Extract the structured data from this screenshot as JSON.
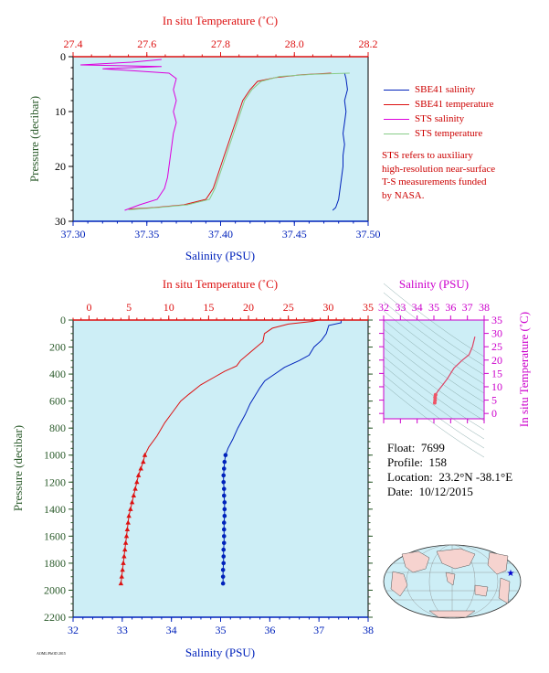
{
  "colors": {
    "panel_bg": "#cdeef6",
    "salinity": "#0022bb",
    "temperature": "#dd1111",
    "sts_salinity": "#dd00dd",
    "sts_temperature": "#88cc88",
    "pressure_axis": "#2a5a2a",
    "magenta_axis": "#cc00cc"
  },
  "legend": {
    "items": [
      {
        "label": "SBE41 salinity",
        "color": "#0022bb"
      },
      {
        "label": "SBE41 temperature",
        "color": "#dd1111"
      },
      {
        "label": "STS salinity",
        "color": "#dd00dd"
      },
      {
        "label": "STS temperature",
        "color": "#88cc88"
      }
    ]
  },
  "note": {
    "lines": [
      "STS refers to auxiliary",
      "high-resolution near-surface",
      "T-S measurements funded",
      "by NASA."
    ]
  },
  "info": {
    "float_label": "Float:",
    "float_value": "7699",
    "profile_label": "Profile:",
    "profile_value": "158",
    "location_label": "Location:",
    "location_value": "23.2°N  -38.1°E",
    "date_label": "Date:",
    "date_value": "10/12/2015"
  },
  "footer_code": "AOML/PhOD 2015",
  "chart_data": [
    {
      "type": "line",
      "title": "",
      "top_axis_label": "In situ Temperature (˚C)",
      "bottom_axis_label": "Salinity (PSU)",
      "ylabel": "Pressure (decibar)",
      "temp_range": [
        27.4,
        28.2
      ],
      "temp_ticks": [
        "27.4",
        "27.6",
        "27.8",
        "28.0",
        "28.2"
      ],
      "salinity_range": [
        37.3,
        37.5
      ],
      "salinity_ticks": [
        "37.30",
        "37.35",
        "37.40",
        "37.45",
        "37.50"
      ],
      "pressure_range": [
        0,
        30
      ],
      "pressure_ticks": [
        "0",
        "10",
        "20",
        "30"
      ],
      "series": [
        {
          "name": "SBE41 salinity",
          "axis": "salinity",
          "points": [
            [
              37.484,
              3
            ],
            [
              37.485,
              4
            ],
            [
              37.486,
              6
            ],
            [
              37.484,
              8
            ],
            [
              37.485,
              10
            ],
            [
              37.484,
              12
            ],
            [
              37.483,
              14
            ],
            [
              37.484,
              16
            ],
            [
              37.483,
              18
            ],
            [
              37.483,
              20
            ],
            [
              37.482,
              22
            ],
            [
              37.481,
              24
            ],
            [
              37.48,
              26
            ],
            [
              37.478,
              27.5
            ],
            [
              37.476,
              28
            ]
          ]
        },
        {
          "name": "SBE41 temperature",
          "axis": "temperature",
          "points": [
            [
              28.1,
              3
            ],
            [
              28.02,
              3.3
            ],
            [
              27.95,
              3.8
            ],
            [
              27.9,
              4.5
            ],
            [
              27.88,
              6
            ],
            [
              27.86,
              8
            ],
            [
              27.85,
              10
            ],
            [
              27.84,
              12
            ],
            [
              27.83,
              14
            ],
            [
              27.82,
              16
            ],
            [
              27.81,
              18
            ],
            [
              27.8,
              20
            ],
            [
              27.79,
              22
            ],
            [
              27.78,
              24
            ],
            [
              27.76,
              26
            ],
            [
              27.7,
              27
            ],
            [
              27.62,
              27.5
            ],
            [
              27.55,
              27.8
            ]
          ]
        },
        {
          "name": "STS salinity",
          "axis": "salinity",
          "points": [
            [
              37.36,
              0.5
            ],
            [
              37.34,
              1
            ],
            [
              37.305,
              1.5
            ],
            [
              37.36,
              1.8
            ],
            [
              37.32,
              2.2
            ],
            [
              37.365,
              3
            ],
            [
              37.37,
              4
            ],
            [
              37.368,
              6
            ],
            [
              37.37,
              8
            ],
            [
              37.368,
              10
            ],
            [
              37.37,
              12
            ],
            [
              37.368,
              14
            ],
            [
              37.367,
              16
            ],
            [
              37.366,
              18
            ],
            [
              37.365,
              20
            ],
            [
              37.364,
              22
            ],
            [
              37.362,
              24
            ],
            [
              37.357,
              26
            ],
            [
              37.345,
              27
            ],
            [
              37.335,
              28
            ]
          ]
        },
        {
          "name": "STS temperature",
          "axis": "temperature",
          "points": [
            [
              28.15,
              3
            ],
            [
              28.05,
              3.2
            ],
            [
              27.96,
              3.6
            ],
            [
              27.91,
              4.5
            ],
            [
              27.885,
              6
            ],
            [
              27.865,
              8
            ],
            [
              27.855,
              10
            ],
            [
              27.845,
              12
            ],
            [
              27.835,
              14
            ],
            [
              27.825,
              16
            ],
            [
              27.815,
              18
            ],
            [
              27.805,
              20
            ],
            [
              27.795,
              22
            ],
            [
              27.785,
              24
            ],
            [
              27.77,
              26
            ],
            [
              27.71,
              27
            ],
            [
              27.63,
              27.5
            ],
            [
              27.55,
              27.9
            ]
          ]
        }
      ]
    },
    {
      "type": "line",
      "title": "",
      "top_axis_label": "In situ Temperature (˚C)",
      "bottom_axis_label": "Salinity (PSU)",
      "ylabel": "Pressure (decibar)",
      "temp_range": [
        -2,
        35
      ],
      "temp_ticks": [
        "0",
        "5",
        "10",
        "15",
        "20",
        "25",
        "30",
        "35"
      ],
      "salinity_range": [
        32,
        38
      ],
      "salinity_ticks": [
        "32",
        "33",
        "34",
        "35",
        "36",
        "37",
        "38"
      ],
      "pressure_range": [
        0,
        2200
      ],
      "pressure_ticks": [
        "0",
        "200",
        "400",
        "600",
        "800",
        "1000",
        "1200",
        "1400",
        "1600",
        "1800",
        "2000",
        "2200"
      ],
      "series": [
        {
          "name": "Temperature",
          "axis": "temperature",
          "points": [
            [
              28.8,
              0
            ],
            [
              28.0,
              10
            ],
            [
              25.0,
              30
            ],
            [
              23.0,
              60
            ],
            [
              22.0,
              100
            ],
            [
              21.8,
              160
            ],
            [
              21.0,
              200
            ],
            [
              20.0,
              250
            ],
            [
              19.0,
              300
            ],
            [
              18.5,
              340
            ],
            [
              17.0,
              380
            ],
            [
              15.5,
              430
            ],
            [
              14.0,
              480
            ],
            [
              12.5,
              550
            ],
            [
              11.5,
              600
            ],
            [
              10.5,
              680
            ],
            [
              9.5,
              760
            ],
            [
              8.5,
              860
            ],
            [
              7.5,
              940
            ],
            [
              7.0,
              1000
            ],
            [
              6.8,
              1050
            ],
            [
              6.5,
              1100
            ],
            [
              6.2,
              1150
            ],
            [
              6.0,
              1200
            ],
            [
              5.8,
              1250
            ],
            [
              5.6,
              1300
            ],
            [
              5.4,
              1350
            ],
            [
              5.2,
              1400
            ],
            [
              5.0,
              1450
            ],
            [
              4.9,
              1500
            ],
            [
              4.8,
              1550
            ],
            [
              4.7,
              1600
            ],
            [
              4.6,
              1650
            ],
            [
              4.5,
              1700
            ],
            [
              4.4,
              1750
            ],
            [
              4.3,
              1800
            ],
            [
              4.2,
              1850
            ],
            [
              4.1,
              1900
            ],
            [
              4.0,
              1950
            ]
          ],
          "markers_from_pressure": 1000
        },
        {
          "name": "Salinity",
          "axis": "salinity",
          "points": [
            [
              37.45,
              0
            ],
            [
              37.45,
              20
            ],
            [
              37.2,
              40
            ],
            [
              37.15,
              100
            ],
            [
              37.05,
              150
            ],
            [
              36.9,
              200
            ],
            [
              36.8,
              260
            ],
            [
              36.6,
              300
            ],
            [
              36.3,
              350
            ],
            [
              36.1,
              400
            ],
            [
              35.9,
              450
            ],
            [
              35.8,
              500
            ],
            [
              35.7,
              560
            ],
            [
              35.6,
              620
            ],
            [
              35.5,
              700
            ],
            [
              35.35,
              800
            ],
            [
              35.25,
              880
            ],
            [
              35.15,
              950
            ],
            [
              35.1,
              1000
            ],
            [
              35.08,
              1050
            ],
            [
              35.07,
              1100
            ],
            [
              35.06,
              1150
            ],
            [
              35.06,
              1200
            ],
            [
              35.07,
              1250
            ],
            [
              35.07,
              1300
            ],
            [
              35.08,
              1350
            ],
            [
              35.08,
              1400
            ],
            [
              35.08,
              1450
            ],
            [
              35.07,
              1500
            ],
            [
              35.07,
              1550
            ],
            [
              35.07,
              1600
            ],
            [
              35.07,
              1650
            ],
            [
              35.06,
              1700
            ],
            [
              35.06,
              1750
            ],
            [
              35.06,
              1800
            ],
            [
              35.05,
              1850
            ],
            [
              35.05,
              1900
            ],
            [
              35.05,
              1950
            ]
          ],
          "markers_from_pressure": 1000
        }
      ]
    },
    {
      "type": "scatter",
      "title": "",
      "top_axis_label": "Salinity (PSU)",
      "right_axis_label": "In situ Temperature (˚C)",
      "salinity_range": [
        32,
        38
      ],
      "salinity_ticks": [
        "32",
        "33",
        "34",
        "35",
        "36",
        "37",
        "38"
      ],
      "temp_range": [
        -2,
        35
      ],
      "temp_ticks": [
        "0",
        "5",
        "10",
        "15",
        "20",
        "25",
        "30",
        "35"
      ],
      "series": [
        {
          "name": "T-S",
          "points": [
            [
              37.45,
              28.8
            ],
            [
              37.3,
              25
            ],
            [
              37.1,
              22
            ],
            [
              36.7,
              20
            ],
            [
              36.2,
              17
            ],
            [
              35.8,
              13
            ],
            [
              35.5,
              10.5
            ],
            [
              35.25,
              8.5
            ],
            [
              35.1,
              7
            ],
            [
              35.07,
              6
            ],
            [
              35.07,
              5
            ],
            [
              35.05,
              4
            ]
          ]
        }
      ]
    }
  ]
}
